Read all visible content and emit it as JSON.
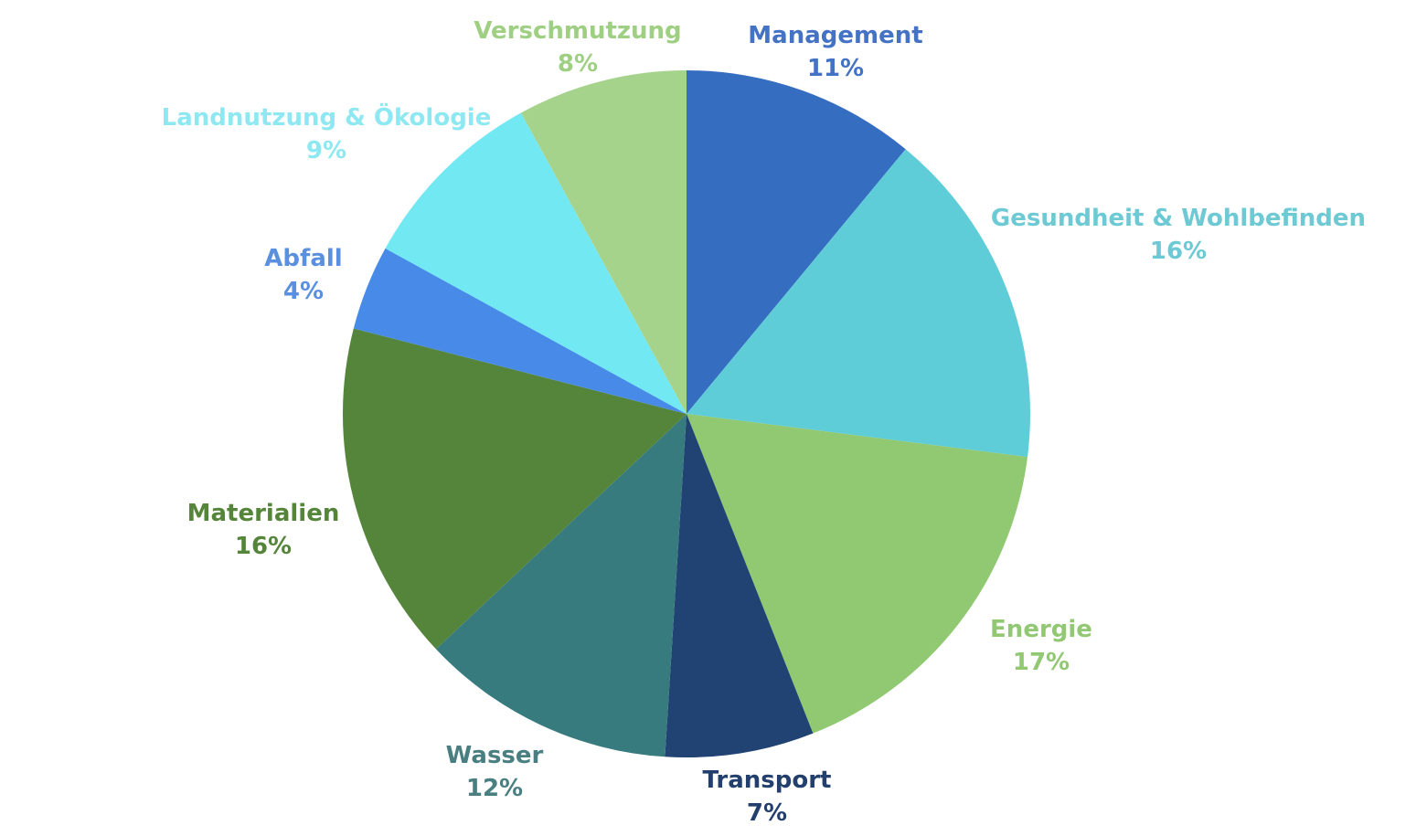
{
  "chart_data": {
    "type": "pie",
    "title": "",
    "start_angle_deg": 0,
    "direction": "clockwise",
    "slices": [
      {
        "label": "Management",
        "value": 11,
        "value_label": "11%",
        "color": "#356dc0",
        "label_color": "#4472c4"
      },
      {
        "label": "Gesundheit & Wohlbefinden",
        "value": 16,
        "value_label": "16%",
        "color": "#5fcdd8",
        "label_color": "#6dc9d3"
      },
      {
        "label": "Energie",
        "value": 17,
        "value_label": "17%",
        "color": "#90c971",
        "label_color": "#92c873"
      },
      {
        "label": "Transport",
        "value": 7,
        "value_label": "7%",
        "color": "#204373",
        "label_color": "#223f6e"
      },
      {
        "label": "Wasser",
        "value": 12,
        "value_label": "12%",
        "color": "#387b7e",
        "label_color": "#4a7f82"
      },
      {
        "label": "Materialien",
        "value": 16,
        "value_label": "16%",
        "color": "#55853b",
        "label_color": "#55853b"
      },
      {
        "label": "Abfall",
        "value": 4,
        "value_label": "4%",
        "color": "#478ae8",
        "label_color": "#5b8fe0"
      },
      {
        "label": "Landnutzung & Ökologie",
        "value": 9,
        "value_label": "9%",
        "color": "#72e8f2",
        "label_color": "#8ee8f2"
      },
      {
        "label": "Verschmutzung",
        "value": 8,
        "value_label": "8%",
        "color": "#a6d38c",
        "label_color": "#9fcf83"
      }
    ]
  }
}
